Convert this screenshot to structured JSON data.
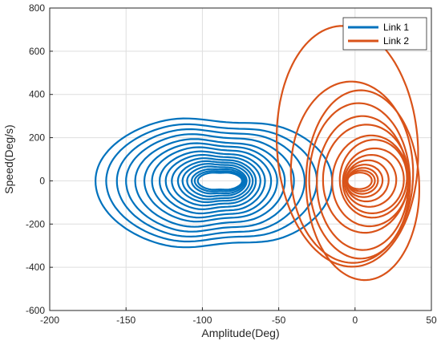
{
  "chart_data": {
    "type": "line",
    "xlabel": "Amplitude(Deg)",
    "ylabel": "Speed(Deg/s)",
    "xlim": [
      -200,
      50
    ],
    "ylim": [
      -600,
      800
    ],
    "xticks": [
      -200,
      -150,
      -100,
      -50,
      0,
      50
    ],
    "yticks": [
      -600,
      -400,
      -200,
      0,
      200,
      400,
      600,
      800
    ],
    "grid": true,
    "legend_position": "top-right",
    "series": [
      {
        "name": "Link 1",
        "color": "#0072BD",
        "description_of_shape": "phase portrait spiraling inward",
        "loops": [
          {
            "x0": -170,
            "x1": -15,
            "ytop": 310,
            "ybot": -330,
            "lobe_left": -100,
            "lobe_right": -65
          },
          {
            "x0": -163,
            "x1": -25,
            "ytop": 280,
            "ybot": -300,
            "lobe_left": -100,
            "lobe_right": -68
          },
          {
            "x0": -156,
            "x1": -33,
            "ytop": 255,
            "ybot": -275,
            "lobe_left": -100,
            "lobe_right": -70
          },
          {
            "x0": -150,
            "x1": -40,
            "ytop": 230,
            "ybot": -250,
            "lobe_left": -100,
            "lobe_right": -72
          },
          {
            "x0": -144,
            "x1": -46,
            "ytop": 205,
            "ybot": -225,
            "lobe_left": -98,
            "lobe_right": -74
          },
          {
            "x0": -138,
            "x1": -51,
            "ytop": 185,
            "ybot": -200,
            "lobe_left": -98,
            "lobe_right": -76
          },
          {
            "x0": -133,
            "x1": -55,
            "ytop": 165,
            "ybot": -180,
            "lobe_left": -96,
            "lobe_right": -78
          },
          {
            "x0": -128,
            "x1": -59,
            "ytop": 145,
            "ybot": -160,
            "lobe_left": -95,
            "lobe_right": -80
          },
          {
            "x0": -124,
            "x1": -62,
            "ytop": 128,
            "ybot": -140,
            "lobe_left": -94,
            "lobe_right": -82
          },
          {
            "x0": -120,
            "x1": -65,
            "ytop": 112,
            "ybot": -122,
            "lobe_left": -93,
            "lobe_right": -84
          },
          {
            "x0": -116,
            "x1": -67,
            "ytop": 98,
            "ybot": -106,
            "lobe_left": -92,
            "lobe_right": -85
          },
          {
            "x0": -113,
            "x1": -69,
            "ytop": 85,
            "ybot": -92,
            "lobe_left": -91,
            "lobe_right": -86
          },
          {
            "x0": -110,
            "x1": -71,
            "ytop": 72,
            "ybot": -78,
            "lobe_left": -90,
            "lobe_right": -87
          },
          {
            "x0": -107,
            "x1": -72,
            "ytop": 60,
            "ybot": -65,
            "lobe_left": -90,
            "lobe_right": -88
          },
          {
            "x0": -105,
            "x1": -73,
            "ytop": 50,
            "ybot": -54,
            "lobe_left": -89,
            "lobe_right": -88
          },
          {
            "x0": -103,
            "x1": -74,
            "ytop": 42,
            "ybot": -45,
            "lobe_left": -89,
            "lobe_right": -88
          }
        ]
      },
      {
        "name": "Link 2",
        "color": "#D95319",
        "description_of_shape": "phase portrait spiraling inward, tilted",
        "loops": [
          {
            "cx": -5,
            "cy": 160,
            "rx": 46,
            "ry": 560,
            "tilt": 10
          },
          {
            "cx": -2,
            "cy": 40,
            "rx": 40,
            "ry": 420,
            "tilt": 8
          },
          {
            "cx": 5,
            "cy": -20,
            "rx": 37,
            "ry": 440,
            "tilt": 6
          },
          {
            "cx": 3,
            "cy": 0,
            "rx": 33,
            "ry": 360,
            "tilt": 6
          },
          {
            "cx": 5,
            "cy": -10,
            "rx": 30,
            "ry": 310,
            "tilt": 5
          },
          {
            "cx": 7,
            "cy": 10,
            "rx": 28,
            "ry": 250,
            "tilt": 5
          },
          {
            "cx": 10,
            "cy": 0,
            "rx": 25,
            "ry": 210,
            "tilt": 4
          },
          {
            "cx": 12,
            "cy": 10,
            "rx": 22,
            "ry": 180,
            "tilt": 4
          },
          {
            "cx": 12,
            "cy": 0,
            "rx": 20,
            "ry": 150,
            "tilt": 4
          },
          {
            "cx": 10,
            "cy": 0,
            "rx": 17,
            "ry": 120,
            "tilt": 3
          },
          {
            "cx": 8,
            "cy": 0,
            "rx": 14,
            "ry": 95,
            "tilt": 3
          },
          {
            "cx": 6,
            "cy": 0,
            "rx": 12,
            "ry": 75,
            "tilt": 2
          },
          {
            "cx": 5,
            "cy": 0,
            "rx": 10,
            "ry": 60,
            "tilt": 2
          },
          {
            "cx": 4,
            "cy": 0,
            "rx": 9,
            "ry": 48,
            "tilt": 1
          },
          {
            "cx": 3,
            "cy": 0,
            "rx": 8,
            "ry": 38,
            "tilt": 1
          }
        ]
      }
    ]
  }
}
